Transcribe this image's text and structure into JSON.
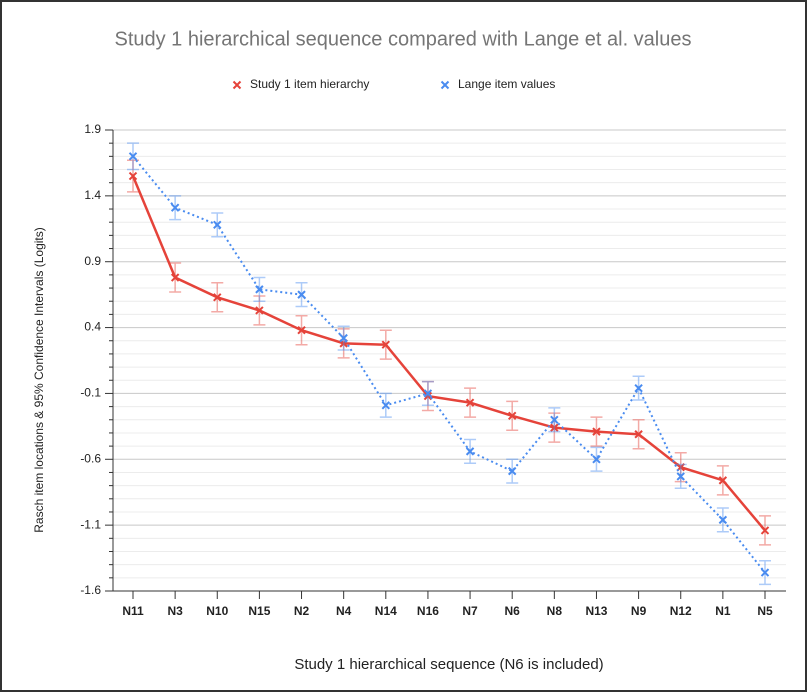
{
  "chart_data": {
    "type": "line",
    "title": "Study 1 hierarchical sequence compared with Lange et al. values",
    "x_label": "Study 1 hierarchical sequence (N6 is included)",
    "y_label": "Rasch item locations & 95% Confidence Intervals (Logits)",
    "categories": [
      "N11",
      "N3",
      "N10",
      "N15",
      "N2",
      "N4",
      "N14",
      "N16",
      "N7",
      "N6",
      "N8",
      "N13",
      "N9",
      "N12",
      "N1",
      "N5"
    ],
    "series": [
      {
        "name": "Study 1 item hierarchy",
        "color": "#e5433a",
        "dash": false,
        "values": [
          1.55,
          0.78,
          0.63,
          0.53,
          0.38,
          0.28,
          0.27,
          -0.12,
          -0.17,
          -0.27,
          -0.36,
          -0.39,
          -0.41,
          -0.66,
          -0.76,
          -1.14
        ],
        "errors": [
          0.12,
          0.11,
          0.11,
          0.11,
          0.11,
          0.11,
          0.11,
          0.11,
          0.11,
          0.11,
          0.11,
          0.11,
          0.11,
          0.11,
          0.11,
          0.11
        ]
      },
      {
        "name": "Lange item values",
        "color": "#4a8cf0",
        "dash": true,
        "values": [
          1.7,
          1.31,
          1.18,
          0.69,
          0.65,
          0.32,
          -0.19,
          -0.1,
          -0.54,
          -0.69,
          -0.3,
          -0.6,
          -0.06,
          -0.73,
          -1.06,
          -1.46
        ],
        "errors": [
          0.1,
          0.09,
          0.09,
          0.09,
          0.09,
          0.09,
          0.09,
          0.09,
          0.09,
          0.09,
          0.09,
          0.09,
          0.09,
          0.09,
          0.09,
          0.09
        ]
      }
    ],
    "ylim": [
      -1.6,
      1.9
    ],
    "yticks": [
      {
        "value": -1.6,
        "label": "-1.6"
      },
      {
        "value": -1.1,
        "label": "-1.1"
      },
      {
        "value": -0.6,
        "label": "-0.6"
      },
      {
        "value": -0.1,
        "label": "-0.1"
      },
      {
        "value": 0.4,
        "label": "0.4"
      },
      {
        "value": 0.9,
        "label": "0.9"
      },
      {
        "value": 1.4,
        "label": "1.4"
      },
      {
        "value": 1.9,
        "label": "1.9"
      }
    ],
    "grid": true,
    "legend": "top"
  }
}
